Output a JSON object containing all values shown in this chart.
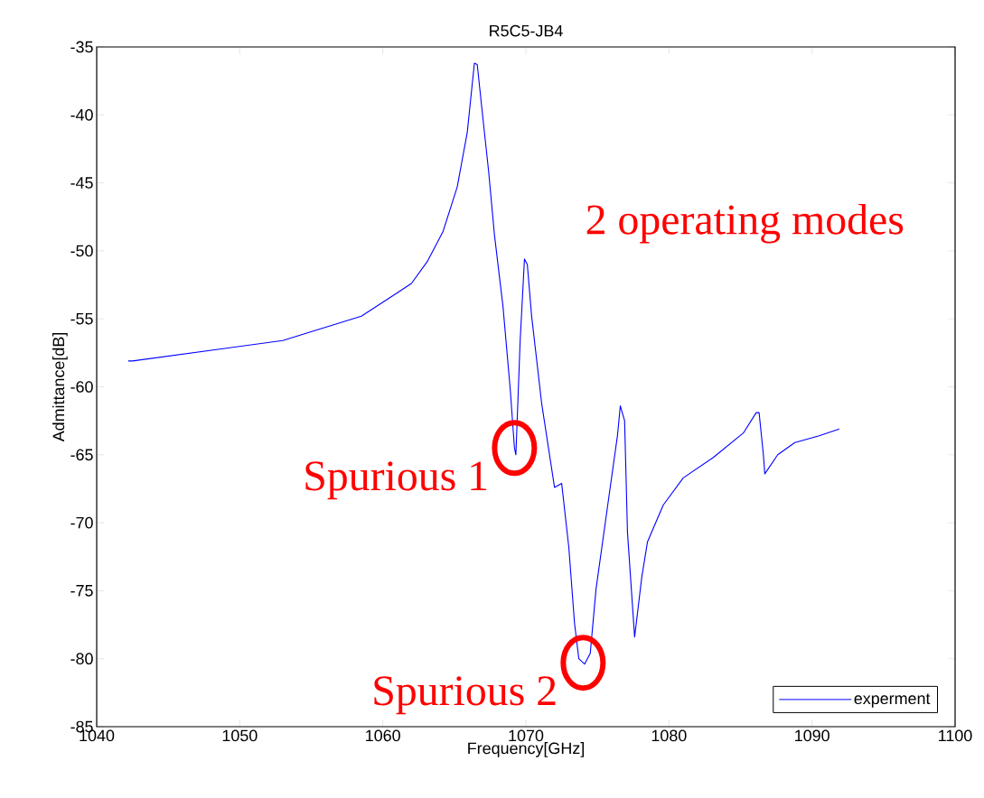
{
  "chart_data": {
    "type": "line",
    "title": "R5C5-JB4",
    "xlabel": "Frequency[GHz]",
    "ylabel": "Admittance[dB]",
    "xlim": [
      1040,
      1100
    ],
    "xticks": [
      1040,
      1050,
      1060,
      1070,
      1080,
      1090,
      1100
    ],
    "ylim": [
      -85,
      -35
    ],
    "yticks": [
      -85,
      -80,
      -75,
      -70,
      -65,
      -60,
      -55,
      -50,
      -45,
      -40,
      -35
    ],
    "grid": false,
    "legend": "bottom right",
    "marker": "none",
    "line_style": "solid",
    "series": [
      {
        "name": "experment",
        "color": "#0000ff",
        "x": [
          1042.2,
          1042.5,
          1053.0,
          1058.5,
          1061.0,
          1062.0,
          1063.1,
          1064.2,
          1065.2,
          1065.9,
          1066.4,
          1066.6,
          1066.9,
          1067.4,
          1067.8,
          1068.4,
          1068.9,
          1069.2,
          1069.3,
          1069.6,
          1069.9,
          1070.1,
          1070.4,
          1071.1,
          1072.0,
          1072.5,
          1073.0,
          1073.4,
          1073.7,
          1074.1,
          1074.5,
          1074.9,
          1075.8,
          1076.4,
          1076.6,
          1076.9,
          1077.1,
          1077.6,
          1078.1,
          1078.5,
          1079.6,
          1081.0,
          1083.1,
          1085.2,
          1086.1,
          1086.3,
          1086.6,
          1086.7,
          1087.6,
          1088.8,
          1090.5,
          1091.9
        ],
        "values": [
          -58.1,
          -58.1,
          -56.6,
          -54.8,
          -53.1,
          -52.4,
          -50.8,
          -48.6,
          -45.3,
          -41.3,
          -36.2,
          -36.3,
          -39.3,
          -44.2,
          -48.8,
          -54.1,
          -60.1,
          -64.5,
          -65.0,
          -56.6,
          -50.6,
          -51.0,
          -54.8,
          -61.2,
          -67.4,
          -67.1,
          -71.8,
          -77.4,
          -80.0,
          -80.4,
          -79.6,
          -74.9,
          -68.1,
          -63.6,
          -61.4,
          -62.5,
          -70.7,
          -78.4,
          -74.0,
          -71.4,
          -68.7,
          -66.7,
          -65.2,
          -63.4,
          -61.9,
          -61.9,
          -65.0,
          -66.4,
          -65.0,
          -64.1,
          -63.6,
          -63.1
        ]
      }
    ],
    "annotations": [
      "2 operating modes",
      {
        "text": "Spurious 1",
        "x": 1069.2,
        "y": -64.5
      },
      {
        "text": "Spurious 2",
        "x": 1074.0,
        "y": -80.3
      }
    ]
  }
}
